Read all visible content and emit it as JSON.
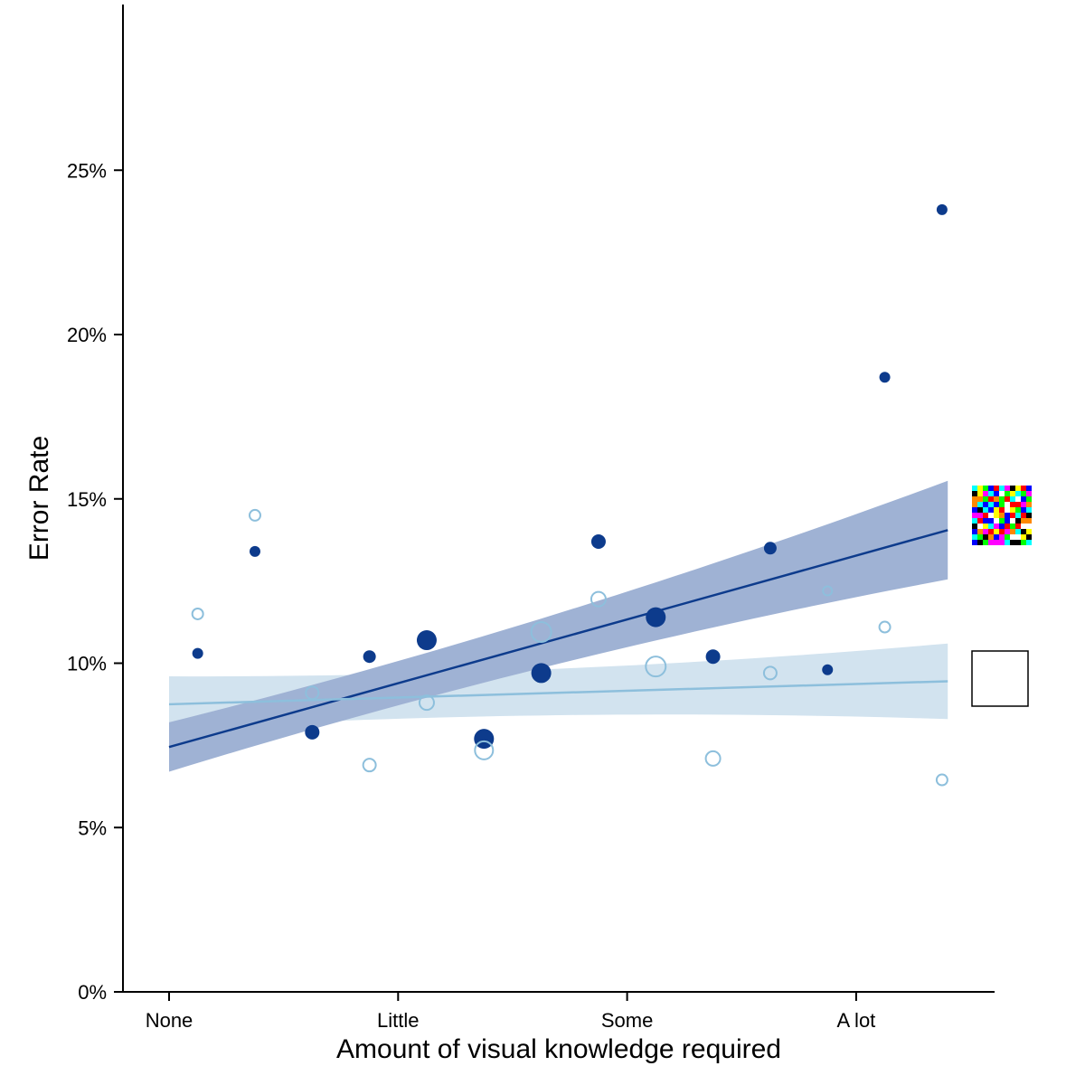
{
  "chart_data": {
    "type": "scatter",
    "xlabel": "Amount of visual knowledge required",
    "ylabel": "Error Rate",
    "x_categories": [
      "None",
      "Little",
      "Some",
      "A lot"
    ],
    "x_range": [
      -0.2,
      3.6
    ],
    "yticks": [
      {
        "value": 0,
        "label": "0%"
      },
      {
        "value": 5,
        "label": "5%"
      },
      {
        "value": 10,
        "label": "10%"
      },
      {
        "value": 15,
        "label": "15%"
      },
      {
        "value": 20,
        "label": "20%"
      },
      {
        "value": 25,
        "label": "25%"
      }
    ],
    "ylim": [
      0,
      30
    ],
    "grid": false,
    "legend": "right",
    "colors": {
      "dark": "#0d3b8c",
      "light": "#8dbfdc"
    },
    "series": [
      {
        "style": "filled",
        "color": "#0d3b8c",
        "points": [
          {
            "x": 0.125,
            "y": 10.3,
            "r": 6
          },
          {
            "x": 0.375,
            "y": 13.4,
            "r": 6
          },
          {
            "x": 0.625,
            "y": 7.9,
            "r": 8
          },
          {
            "x": 0.875,
            "y": 10.2,
            "r": 7
          },
          {
            "x": 1.125,
            "y": 10.7,
            "r": 11
          },
          {
            "x": 1.375,
            "y": 7.7,
            "r": 11
          },
          {
            "x": 1.625,
            "y": 9.7,
            "r": 11
          },
          {
            "x": 1.875,
            "y": 13.7,
            "r": 8
          },
          {
            "x": 2.125,
            "y": 11.4,
            "r": 11
          },
          {
            "x": 2.375,
            "y": 10.2,
            "r": 8
          },
          {
            "x": 2.625,
            "y": 13.5,
            "r": 7
          },
          {
            "x": 2.875,
            "y": 9.8,
            "r": 6
          },
          {
            "x": 3.125,
            "y": 18.7,
            "r": 6
          },
          {
            "x": 3.375,
            "y": 23.8,
            "r": 6
          }
        ],
        "fit": {
          "x0": 0,
          "y0": 7.45,
          "x1": 3.4,
          "y1": 14.05
        },
        "band": {
          "lo0": 6.7,
          "hi0": 8.2,
          "lo1": 12.55,
          "hi1": 15.55
        }
      },
      {
        "style": "hollow",
        "color": "#8dbfdc",
        "points": [
          {
            "x": 0.125,
            "y": 11.5,
            "r": 6
          },
          {
            "x": 0.375,
            "y": 14.5,
            "r": 6
          },
          {
            "x": 0.625,
            "y": 9.1,
            "r": 7
          },
          {
            "x": 0.875,
            "y": 6.9,
            "r": 7
          },
          {
            "x": 1.125,
            "y": 8.8,
            "r": 8
          },
          {
            "x": 1.375,
            "y": 7.35,
            "r": 10
          },
          {
            "x": 1.625,
            "y": 10.95,
            "r": 11
          },
          {
            "x": 1.875,
            "y": 11.95,
            "r": 8
          },
          {
            "x": 2.125,
            "y": 9.9,
            "r": 11
          },
          {
            "x": 2.375,
            "y": 7.1,
            "r": 8
          },
          {
            "x": 2.625,
            "y": 9.7,
            "r": 7
          },
          {
            "x": 2.875,
            "y": 12.2,
            "r": 5
          },
          {
            "x": 3.125,
            "y": 11.1,
            "r": 6
          },
          {
            "x": 3.375,
            "y": 6.45,
            "r": 6
          }
        ],
        "fit": {
          "x0": 0,
          "y0": 8.75,
          "x1": 3.4,
          "y1": 9.45
        },
        "band": {
          "lo0": 8.0,
          "hi0": 9.6,
          "lo1": 8.3,
          "hi1": 10.6
        }
      }
    ]
  }
}
